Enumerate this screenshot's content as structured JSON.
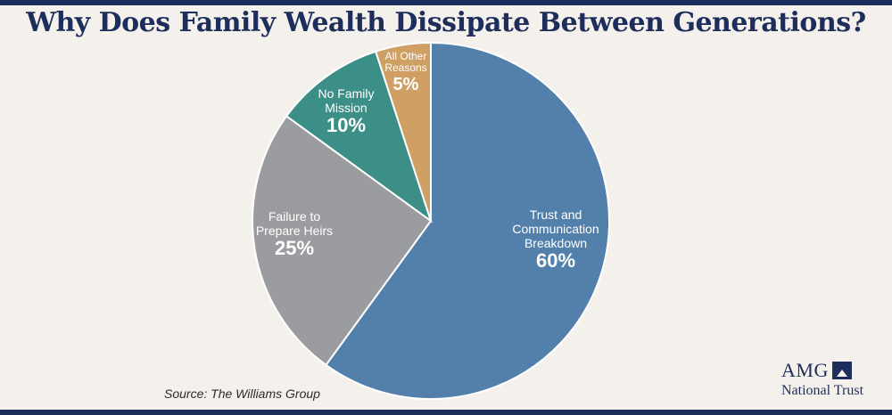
{
  "title": "Why Does Family Wealth Dissipate Between Generations?",
  "source": "Source: The Williams Group",
  "logo": {
    "word": "AMG",
    "sub": "National Trust",
    "mark": "mountain-square-icon"
  },
  "chart_data": {
    "type": "pie",
    "title": "Why Does Family Wealth Dissipate Between Generations?",
    "start": "12 o'clock",
    "direction": "clockwise",
    "slices": [
      {
        "label": [
          "Trust and",
          "Communication",
          "Breakdown"
        ],
        "value": 60,
        "value_label": "60%",
        "color": "#5380ab"
      },
      {
        "label": [
          "Failure to",
          "Prepare Heirs"
        ],
        "value": 25,
        "value_label": "25%",
        "color": "#9a9c9f"
      },
      {
        "label": [
          "No Family",
          "Mission"
        ],
        "value": 10,
        "value_label": "10%",
        "color": "#3b8f86"
      },
      {
        "label": [
          "All Other",
          "Reasons"
        ],
        "value": 5,
        "value_label": "5%",
        "color": "#cf9f63"
      }
    ]
  },
  "colors": {
    "navy": "#1d2d5c",
    "background": "#f4f1ec"
  }
}
